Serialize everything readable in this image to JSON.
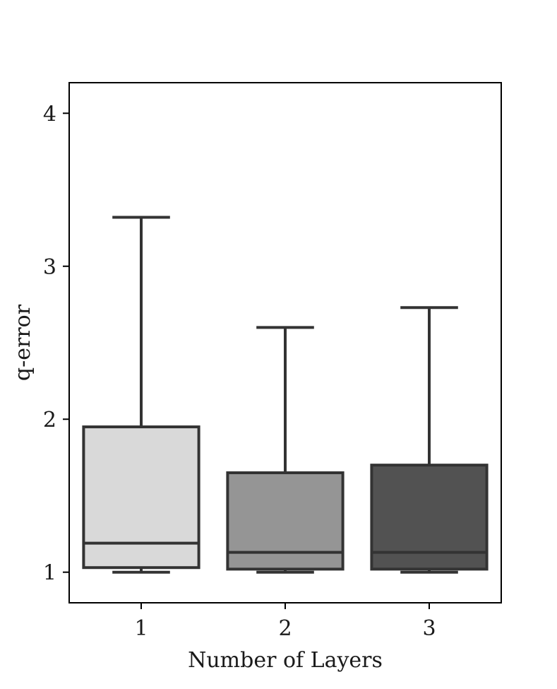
{
  "chart_data": {
    "type": "box",
    "title": "",
    "xlabel": "Number of Layers",
    "ylabel": "q-error",
    "ylim": [
      0.8,
      4.2
    ],
    "yticks": [
      1,
      2,
      3,
      4
    ],
    "grid": false,
    "categories": [
      "1",
      "2",
      "3"
    ],
    "boxes": [
      {
        "category": "1",
        "whisker_low": 1.0,
        "q1": 1.03,
        "median": 1.19,
        "q3": 1.95,
        "whisker_high": 3.32,
        "color": "#d9d9d9"
      },
      {
        "category": "2",
        "whisker_low": 1.0,
        "q1": 1.02,
        "median": 1.13,
        "q3": 1.65,
        "whisker_high": 2.6,
        "color": "#959595"
      },
      {
        "category": "3",
        "whisker_low": 1.0,
        "q1": 1.02,
        "median": 1.13,
        "q3": 1.7,
        "whisker_high": 2.73,
        "color": "#525252"
      }
    ],
    "line_color": "#333333"
  }
}
